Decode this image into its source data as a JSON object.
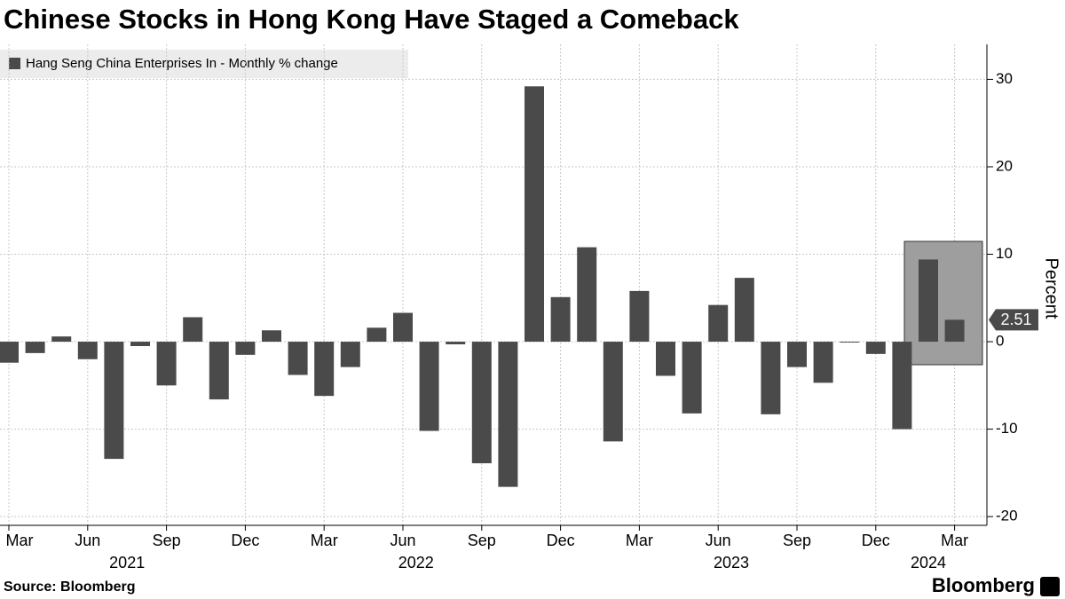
{
  "chart_data": {
    "type": "bar",
    "title": "Chinese Stocks in Hong Kong Have Staged a Comeback",
    "series": [
      {
        "name": "Hang Seng China Enterprises In - Monthly % change",
        "color": "#4a4a4a",
        "values": [
          -2.4,
          -1.3,
          0.6,
          -2.0,
          -13.4,
          -0.5,
          -5.0,
          2.8,
          -6.6,
          -1.5,
          1.3,
          -3.8,
          -6.2,
          -2.9,
          1.6,
          3.3,
          -10.2,
          -0.3,
          -13.9,
          -16.6,
          29.2,
          5.1,
          10.8,
          -11.4,
          5.8,
          -3.9,
          -8.2,
          4.2,
          7.3,
          -8.3,
          -2.9,
          -4.7,
          -0.1,
          -1.4,
          -10.0,
          9.4,
          2.51
        ]
      }
    ],
    "categories": [
      "Mar",
      null,
      null,
      "Jun",
      null,
      null,
      "Sep",
      null,
      null,
      "Dec",
      null,
      null,
      "Mar",
      null,
      null,
      "Jun",
      null,
      null,
      "Sep",
      null,
      null,
      "Dec",
      null,
      null,
      "Mar",
      null,
      null,
      "Jun",
      null,
      null,
      "Sep",
      null,
      null,
      "Dec",
      null,
      null,
      "Mar"
    ],
    "year_labels": [
      "2021",
      "2022",
      "2023",
      "2024"
    ],
    "y_axis_label": "Percent",
    "ylim": [
      -21,
      34
    ],
    "yticks": [
      -20,
      -10,
      0,
      10,
      20,
      30
    ],
    "grid": true,
    "source": "Source: Bloomberg",
    "brand": "Bloomberg"
  }
}
